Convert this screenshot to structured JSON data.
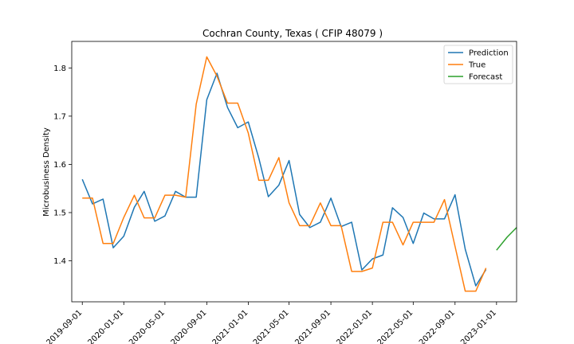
{
  "chart_data": {
    "type": "line",
    "title": "Cochran County, Texas ( CFIP 48079 )",
    "xlabel": "",
    "ylabel": "Microbusiness Density",
    "ylim": [
      1.315,
      1.855
    ],
    "xlim": [
      "2019-08-01",
      "2023-03-01"
    ],
    "y_ticks": [
      1.4,
      1.5,
      1.6,
      1.7,
      1.8
    ],
    "y_tick_labels": [
      "1.4",
      "1.5",
      "1.6",
      "1.7",
      "1.8"
    ],
    "x_tick_labels": [
      "2019-09-01",
      "2020-01-01",
      "2020-05-01",
      "2020-09-01",
      "2021-01-01",
      "2021-05-01",
      "2021-09-01",
      "2022-01-01",
      "2022-05-01",
      "2022-09-01",
      "2023-01-01"
    ],
    "grid": false,
    "legend_position": "top-right",
    "colors": {
      "Prediction": "#1f77b4",
      "True": "#ff7f0e",
      "Forecast": "#2ca02c"
    },
    "series": [
      {
        "name": "Prediction",
        "x": [
          "2019-09-01",
          "2019-10-01",
          "2019-11-01",
          "2019-12-01",
          "2020-01-01",
          "2020-02-01",
          "2020-03-01",
          "2020-04-01",
          "2020-05-01",
          "2020-06-01",
          "2020-07-01",
          "2020-08-01",
          "2020-09-01",
          "2020-10-01",
          "2020-11-01",
          "2020-12-01",
          "2021-01-01",
          "2021-02-01",
          "2021-03-01",
          "2021-04-01",
          "2021-05-01",
          "2021-06-01",
          "2021-07-01",
          "2021-08-01",
          "2021-09-01",
          "2021-10-01",
          "2021-11-01",
          "2021-12-01",
          "2022-01-01",
          "2022-02-01",
          "2022-03-01",
          "2022-04-01",
          "2022-05-01",
          "2022-06-01",
          "2022-07-01",
          "2022-08-01",
          "2022-09-01",
          "2022-10-01",
          "2022-11-01",
          "2022-12-01"
        ],
        "values": [
          1.569,
          1.518,
          1.528,
          1.427,
          1.451,
          1.511,
          1.544,
          1.482,
          1.493,
          1.544,
          1.532,
          1.532,
          1.734,
          1.789,
          1.718,
          1.676,
          1.688,
          1.613,
          1.533,
          1.557,
          1.608,
          1.496,
          1.469,
          1.48,
          1.53,
          1.471,
          1.48,
          1.381,
          1.404,
          1.412,
          1.51,
          1.49,
          1.436,
          1.499,
          1.487,
          1.487,
          1.537,
          1.424,
          1.348,
          1.382
        ]
      },
      {
        "name": "True",
        "x": [
          "2019-09-01",
          "2019-10-01",
          "2019-11-01",
          "2019-12-01",
          "2020-01-01",
          "2020-02-01",
          "2020-03-01",
          "2020-04-01",
          "2020-05-01",
          "2020-06-01",
          "2020-07-01",
          "2020-08-01",
          "2020-09-01",
          "2020-10-01",
          "2020-11-01",
          "2020-12-01",
          "2021-01-01",
          "2021-02-01",
          "2021-03-01",
          "2021-04-01",
          "2021-05-01",
          "2021-06-01",
          "2021-07-01",
          "2021-08-01",
          "2021-09-01",
          "2021-10-01",
          "2021-11-01",
          "2021-12-01",
          "2022-01-01",
          "2022-02-01",
          "2022-03-01",
          "2022-04-01",
          "2022-05-01",
          "2022-06-01",
          "2022-07-01",
          "2022-08-01",
          "2022-09-01",
          "2022-10-01",
          "2022-11-01",
          "2022-12-01"
        ],
        "values": [
          1.53,
          1.53,
          1.436,
          1.436,
          1.49,
          1.536,
          1.489,
          1.489,
          1.536,
          1.536,
          1.532,
          1.725,
          1.823,
          1.783,
          1.727,
          1.727,
          1.665,
          1.567,
          1.567,
          1.614,
          1.52,
          1.473,
          1.473,
          1.52,
          1.473,
          1.473,
          1.378,
          1.378,
          1.385,
          1.48,
          1.48,
          1.433,
          1.48,
          1.48,
          1.48,
          1.527,
          1.43,
          1.337,
          1.337,
          1.385
        ]
      },
      {
        "name": "Forecast",
        "x": [
          "2023-01-01",
          "2023-02-01",
          "2023-03-01"
        ],
        "values": [
          1.422,
          1.449,
          1.469
        ]
      }
    ]
  }
}
